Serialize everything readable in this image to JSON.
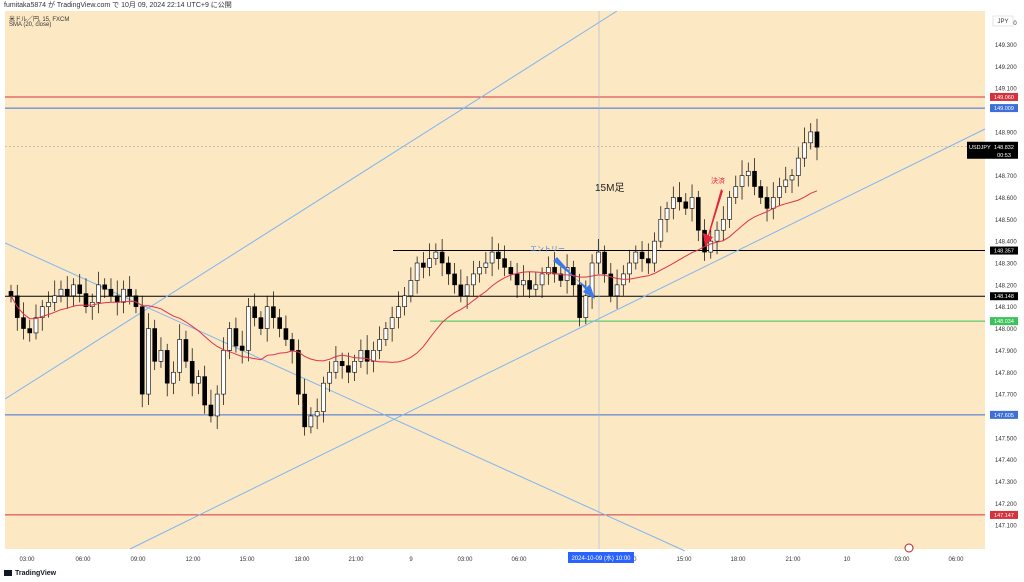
{
  "header": {
    "publish_line": "fumitaka5874 が TradingView.com で 10月 09, 2024 22:14 UTC+9 に公開",
    "symbol_line": "米ドル／円, 15, FXCM",
    "indicator_line": "SMA (20, close)"
  },
  "chart": {
    "currency_label": "JPY",
    "price_axis_ticks": [
      "149.400",
      "149.300",
      "149.200",
      "149.100",
      "148.900",
      "148.800",
      "148.700",
      "148.600",
      "148.500",
      "148.400",
      "148.300",
      "148.200",
      "148.100",
      "148.000",
      "147.900",
      "147.800",
      "147.700",
      "147.600",
      "147.500",
      "147.400",
      "147.300",
      "147.200",
      "147.100"
    ],
    "time_axis_ticks": [
      "03:00",
      "06:00",
      "09:00",
      "12:00",
      "15:00",
      "18:00",
      "21:00",
      "9",
      "03:00",
      "06:00",
      "",
      "12:00",
      "15:00",
      "18:00",
      "21:00",
      "10",
      "03:00",
      "06:00"
    ],
    "time_cursor_label": "2024-10-09 (水)  10:00",
    "current_price_box": {
      "symbol": "USDJPY",
      "price": "148.832",
      "countdown": "00:53"
    },
    "level_labels": {
      "red_top": "149.060",
      "blue_top": "149.009",
      "black_upper": "148.357",
      "black_lower": "148.148",
      "green": "148.034",
      "blue_bottom": "147.605",
      "red_bottom": "147.147"
    },
    "annotations": {
      "timeframe": "15M足",
      "entry": "エントリー",
      "exit": "決済"
    },
    "colors": {
      "background": "#fde8c4",
      "bull_candle": "#ffffff",
      "bear_candle": "#000000",
      "sma": "#e0314b",
      "trendline": "#7fb6f0",
      "blue_level": "#3d6fd6",
      "red_level": "#d4323c",
      "green_level": "#3cc25a",
      "entry_arrow": "#3a7bec",
      "exit_arrow": "#e3273a"
    }
  },
  "footer": {
    "brand": "TradingView"
  }
}
